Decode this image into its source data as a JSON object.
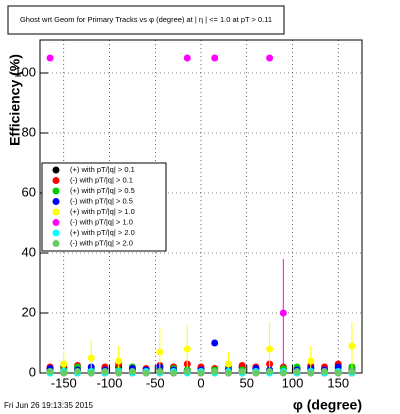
{
  "chart_data": {
    "type": "scatter",
    "title": "Ghost wrt Geom for Primary Tracks vs φ (degree) at |  η | <= 1.0 at pT > 0.11",
    "x_label": "φ (degree)",
    "y_label": "Efficiency (%)",
    "footer": "Fri Jun 26 19:13:35 2015",
    "xlim": [
      -176,
      176
    ],
    "ylim": [
      0,
      111
    ],
    "xticks": [
      -150,
      -100,
      -50,
      0,
      50,
      100,
      150
    ],
    "yticks": [
      0,
      20,
      40,
      60,
      80,
      100
    ],
    "grid": true,
    "x": [
      -165,
      -150,
      -135,
      -120,
      -105,
      -90,
      -75,
      -60,
      -45,
      -30,
      -15,
      0,
      15,
      30,
      45,
      60,
      75,
      90,
      105,
      120,
      135,
      150,
      165
    ],
    "series": [
      {
        "name": "(+) with pT/|q| > 0.1",
        "color": "#000000",
        "values": [
          1,
          2,
          1,
          0.5,
          1.5,
          2,
          1,
          0.5,
          1,
          2,
          1,
          1.5,
          0.5,
          1,
          2,
          1,
          0.5,
          1.5,
          1,
          2,
          1,
          0.5,
          1
        ]
      },
      {
        "name": "(-) with pT/|q| > 0.1",
        "color": "#ff0000",
        "values": [
          2,
          1.5,
          2.5,
          1,
          2,
          3,
          2,
          1.5,
          2.5,
          2,
          3,
          2,
          1.5,
          2,
          2.5,
          2,
          3,
          2,
          1.5,
          2.5,
          2,
          3,
          2
        ]
      },
      {
        "name": "(+) with pT/|q| > 0.5",
        "color": "#00cc00",
        "values": [
          0.5,
          1,
          2,
          1,
          0.5,
          1,
          2,
          1,
          0.5,
          1.5,
          1,
          0.5,
          1,
          2,
          1,
          0.5,
          1,
          1.5,
          2,
          1,
          0.5,
          1,
          2
        ]
      },
      {
        "name": "(-) with pT/|q| > 0.5",
        "color": "#0000ff",
        "values": [
          1.5,
          0.5,
          1,
          2,
          1,
          0.5,
          1.5,
          1,
          2,
          1,
          0.5,
          1,
          10,
          1,
          0.5,
          1.5,
          1,
          0.5,
          1,
          1.5,
          1,
          2,
          0.5
        ]
      },
      {
        "name": "(+) with pT/|q| > 1.0",
        "color": "#ffff00",
        "values": [
          0,
          3,
          0,
          5,
          0,
          4,
          0,
          0,
          7,
          0,
          8,
          0,
          0,
          3,
          0,
          0,
          8,
          0,
          0,
          4,
          0,
          0,
          9
        ],
        "errors": [
          0,
          4,
          0,
          6,
          0,
          5,
          0,
          0,
          8,
          0,
          8,
          0,
          0,
          4,
          0,
          0,
          9,
          0,
          0,
          5,
          0,
          0,
          8
        ]
      },
      {
        "name": "(-) with pT/|q| > 1.0",
        "color": "#ff00ff",
        "values": [
          105,
          0,
          0,
          0,
          0,
          0,
          0,
          0,
          0,
          0,
          105,
          0,
          105,
          0,
          0,
          0,
          105,
          20,
          0,
          0,
          0,
          0,
          0
        ],
        "errors": [
          0,
          0,
          0,
          0,
          0,
          0,
          0,
          0,
          0,
          0,
          0,
          0,
          0,
          0,
          0,
          0,
          0,
          18,
          0,
          0,
          0,
          0,
          0
        ]
      },
      {
        "name": "(+) with pT/|q| > 2.0",
        "color": "#00ffff",
        "values": [
          0,
          0.5,
          0,
          0.5,
          0,
          0.5,
          0,
          0.5,
          0,
          0.5,
          0,
          0.5,
          0,
          0.5,
          0,
          0.5,
          0,
          0.5,
          0,
          0.5,
          0,
          0.5,
          0
        ]
      },
      {
        "name": "(-) with pT/|q| > 2.0",
        "color": "#66cc66",
        "values": [
          0.5,
          0,
          0.5,
          0,
          0.5,
          0,
          0.5,
          0,
          0.5,
          0,
          0.5,
          0,
          0.5,
          0,
          0.5,
          0,
          0.5,
          0,
          0.5,
          0,
          0.5,
          0,
          0.5
        ]
      }
    ]
  }
}
